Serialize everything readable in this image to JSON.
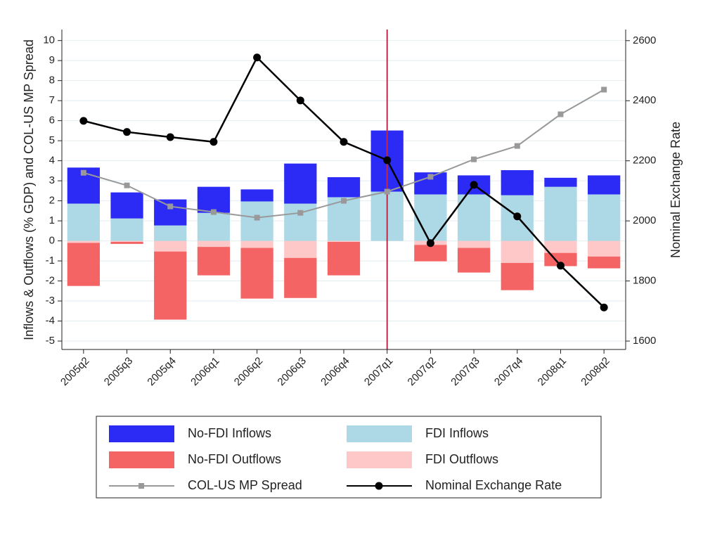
{
  "chart_data": {
    "type": "bar",
    "y_label": "Inflows & Outflows (% GDP) and COL-US MP Spread",
    "y2_label": "Nominal Exchange Rate",
    "categories": [
      "2005q2",
      "2005q3",
      "2005q4",
      "2006q1",
      "2006q2",
      "2006q3",
      "2006q4",
      "2007q1",
      "2007q2",
      "2007q3",
      "2007q4",
      "2008q1",
      "2008q2"
    ],
    "series": [
      {
        "name": "No-FDI Inflows",
        "type": "bar",
        "color": "#2b2bf5",
        "values": [
          1.8,
          1.3,
          1.3,
          1.3,
          0.6,
          2.0,
          1.0,
          3.05,
          1.1,
          0.95,
          1.25,
          0.45,
          0.95
        ]
      },
      {
        "name": "FDI Inflows",
        "type": "bar",
        "color": "#add8e6",
        "values": [
          1.86,
          1.12,
          0.77,
          1.4,
          1.97,
          1.86,
          2.18,
          2.46,
          2.32,
          2.32,
          2.28,
          2.7,
          2.32
        ]
      },
      {
        "name": "No-FDI Outflows",
        "type": "bar",
        "color": "#f46464",
        "values": [
          -2.15,
          -0.1,
          -3.4,
          -1.42,
          -2.53,
          -2.0,
          -1.67,
          0,
          -0.82,
          -1.23,
          -1.36,
          -0.66,
          -0.59
        ]
      },
      {
        "name": "FDI Outflows",
        "type": "bar",
        "color": "#ffc8c8",
        "values": [
          -0.1,
          -0.05,
          -0.53,
          -0.3,
          -0.35,
          -0.85,
          -0.05,
          0,
          -0.2,
          -0.35,
          -1.1,
          -0.6,
          -0.78
        ]
      },
      {
        "name": "COL-US MP Spread",
        "type": "line",
        "marker": "square",
        "color": "#999999",
        "values": [
          3.4,
          2.77,
          1.72,
          1.44,
          1.16,
          1.4,
          2.0,
          2.46,
          3.2,
          4.07,
          4.74,
          6.32,
          7.55
        ]
      },
      {
        "name": "Nominal Exchange Rate",
        "type": "line",
        "marker": "circle",
        "axis": "y2",
        "color": "#000000",
        "values": [
          2333,
          2296,
          2279,
          2263,
          2544,
          2401,
          2263,
          2202,
          1926,
          2120,
          2015,
          1851,
          1712
        ]
      }
    ],
    "vline_category": "2007q1",
    "vline_color": "#c0284a",
    "ylim": [
      -5.42,
      10.55
    ],
    "yticks": [
      -5,
      -4,
      -3,
      -2,
      -1,
      0,
      1,
      2,
      3,
      4,
      5,
      6,
      7,
      8,
      9,
      10
    ],
    "y2lim": [
      1572,
      2637
    ],
    "y2ticks": [
      1600,
      1800,
      2000,
      2200,
      2400,
      2600
    ],
    "grid": true
  }
}
